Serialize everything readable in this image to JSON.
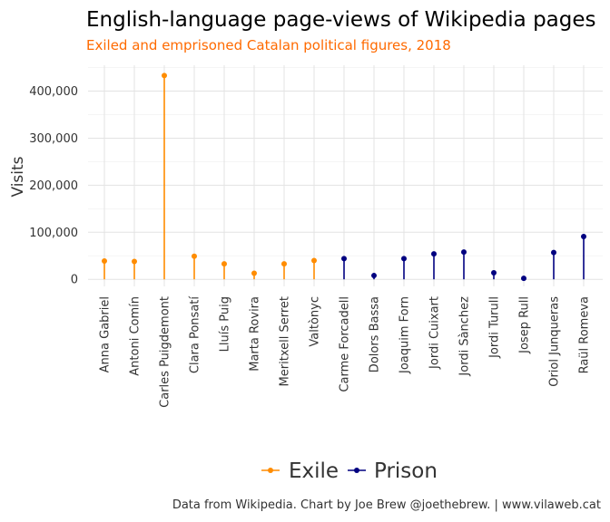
{
  "colors": {
    "exile": "#FF8C00",
    "prison": "#000080",
    "subtitle": "#FF6A00"
  },
  "chart_data": {
    "type": "lollipop",
    "title": "English-language page-views of Wikipedia pages",
    "subtitle": "Exiled and emprisoned Catalan political figures, 2018",
    "xlabel": "",
    "ylabel": "Visits",
    "ylim": [
      -15000,
      455000
    ],
    "yticks": [
      0,
      100000,
      200000,
      300000,
      400000
    ],
    "ytick_labels": [
      "0",
      "100,000",
      "200,000",
      "300,000",
      "400,000"
    ],
    "grid": true,
    "legend_position": "bottom",
    "categories": [
      "Anna Gabriel",
      "Antoni Comín",
      "Carles Puigdemont",
      "Clara Ponsatí",
      "Lluís Puig",
      "Marta Rovira",
      "Meritxell Serret",
      "Valtònyc",
      "Carme Forcadell",
      "Dolors Bassa",
      "Joaquim Forn",
      "Jordi Cuixart",
      "Jordi Sànchez",
      "Jordi Turull",
      "Josep Rull",
      "Oriol Junqueras",
      "Raül Romeva"
    ],
    "groups": [
      "Exile",
      "Exile",
      "Exile",
      "Exile",
      "Exile",
      "Exile",
      "Exile",
      "Exile",
      "Prison",
      "Prison",
      "Prison",
      "Prison",
      "Prison",
      "Prison",
      "Prison",
      "Prison",
      "Prison"
    ],
    "values": [
      39000,
      38000,
      433000,
      49000,
      33000,
      13000,
      33000,
      40000,
      44000,
      8000,
      44000,
      54000,
      58000,
      14000,
      2000,
      57000,
      91000
    ],
    "series": [
      {
        "name": "Exile",
        "color": "#FF8C00"
      },
      {
        "name": "Prison",
        "color": "#000080"
      }
    ]
  },
  "caption": "Data from Wikipedia. Chart by Joe Brew @joethebrew. | www.vilaweb.cat"
}
